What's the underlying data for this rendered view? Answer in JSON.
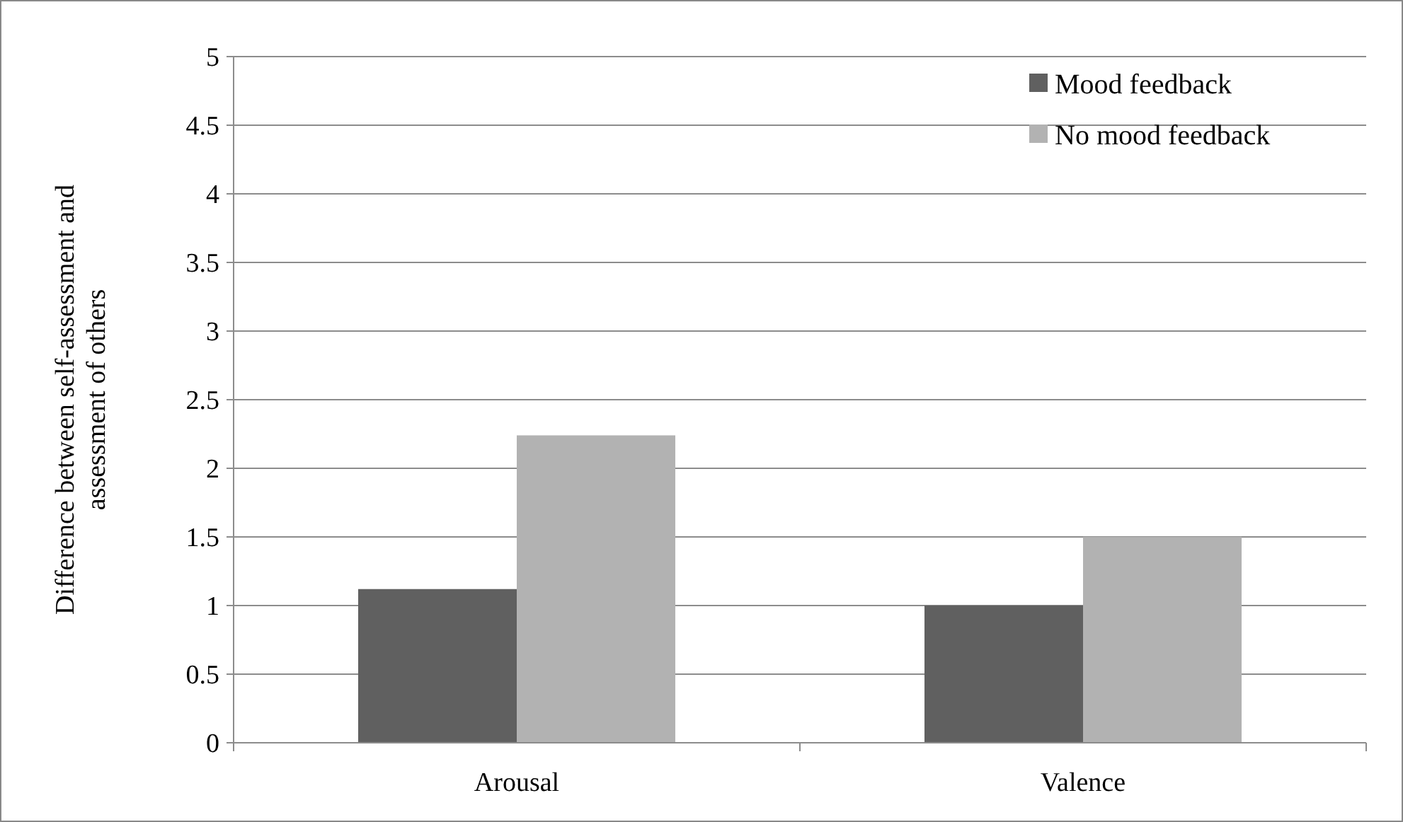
{
  "chart_data": {
    "type": "bar",
    "ylabel": "Difference between self-assessment and assessment of others",
    "categories": [
      "Arousal",
      "Valence"
    ],
    "series": [
      {
        "name": "Mood feedback",
        "color": "#606060",
        "values": [
          1.12,
          1.0
        ]
      },
      {
        "name": "No mood feedback",
        "color": "#b2b2b2",
        "values": [
          2.24,
          1.5
        ]
      }
    ],
    "ylim": [
      0,
      5
    ],
    "yticks": [
      0,
      0.5,
      1,
      1.5,
      2,
      2.5,
      3,
      3.5,
      4,
      4.5,
      5
    ],
    "grid": "y",
    "legend": "top right"
  }
}
